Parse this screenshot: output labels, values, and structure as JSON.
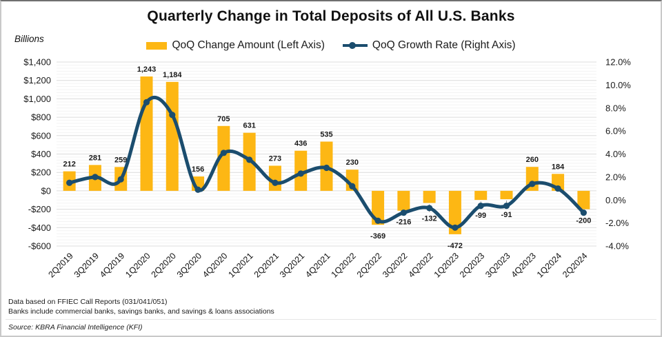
{
  "header": {
    "title": "Quarterly Change in Total Deposits of All U.S. Banks"
  },
  "chart_data": {
    "type": "bar-line-combo",
    "title": "Quarterly Change in Total Deposits of All U.S. Banks",
    "legend_position": "top",
    "categories": [
      "2Q2019",
      "3Q2019",
      "4Q2019",
      "1Q2020",
      "2Q2020",
      "3Q2020",
      "4Q2020",
      "1Q2021",
      "2Q2021",
      "3Q2021",
      "4Q2021",
      "1Q2022",
      "2Q2022",
      "3Q2022",
      "4Q2022",
      "1Q2023",
      "2Q2023",
      "3Q2023",
      "4Q2023",
      "1Q2024",
      "2Q2024"
    ],
    "series": [
      {
        "name": "QoQ Change Amount (Left Axis)",
        "type": "bar",
        "axis": "left",
        "color": "#FDB714",
        "values": [
          212,
          281,
          259,
          1243,
          1184,
          156,
          705,
          631,
          273,
          436,
          535,
          230,
          -369,
          -216,
          -132,
          -472,
          -99,
          -91,
          260,
          184,
          -200
        ]
      },
      {
        "name": "QoQ Growth Rate (Right Axis)",
        "type": "line",
        "axis": "right",
        "color": "#1B4D6E",
        "values": [
          1.5,
          2.0,
          1.8,
          8.5,
          7.4,
          0.9,
          4.1,
          3.5,
          1.5,
          2.3,
          2.8,
          1.2,
          -1.8,
          -1.1,
          -0.7,
          -2.4,
          -0.5,
          -0.5,
          1.4,
          1.0,
          -1.1
        ],
        "values_note": "estimated from plot; no numeric labels shown for line"
      }
    ],
    "axes": {
      "left": {
        "title": "Billions",
        "min": -600,
        "max": 1400,
        "step": 200,
        "tick_format": "$#,##0"
      },
      "right": {
        "min": -4,
        "max": 12,
        "step": 2,
        "tick_format": "0.0%"
      }
    },
    "bar_data_labels": true,
    "label_leader_line_categories": [
      "4Q2022",
      "2Q2023",
      "3Q2023"
    ],
    "grid": {
      "horizontal_major": true,
      "horizontal_minor": true,
      "vertical": false
    }
  },
  "colors": {
    "bar": "#FDB714",
    "line": "#1B4D6E",
    "grid_major": "#dcdcdc",
    "grid_minor": "#f3f3f3",
    "axis_text": "#1a1a1a",
    "data_label": "#1a1a1a",
    "leader_line": "#9a9a9a"
  },
  "footer": {
    "note_line1": "Data based on FFIEC Call Reports (031/041/051)",
    "note_line2": "Banks include commercial banks, savings banks, and savings & loans associations",
    "source": "Source: KBRA Financial Intelligence (KFI)"
  }
}
